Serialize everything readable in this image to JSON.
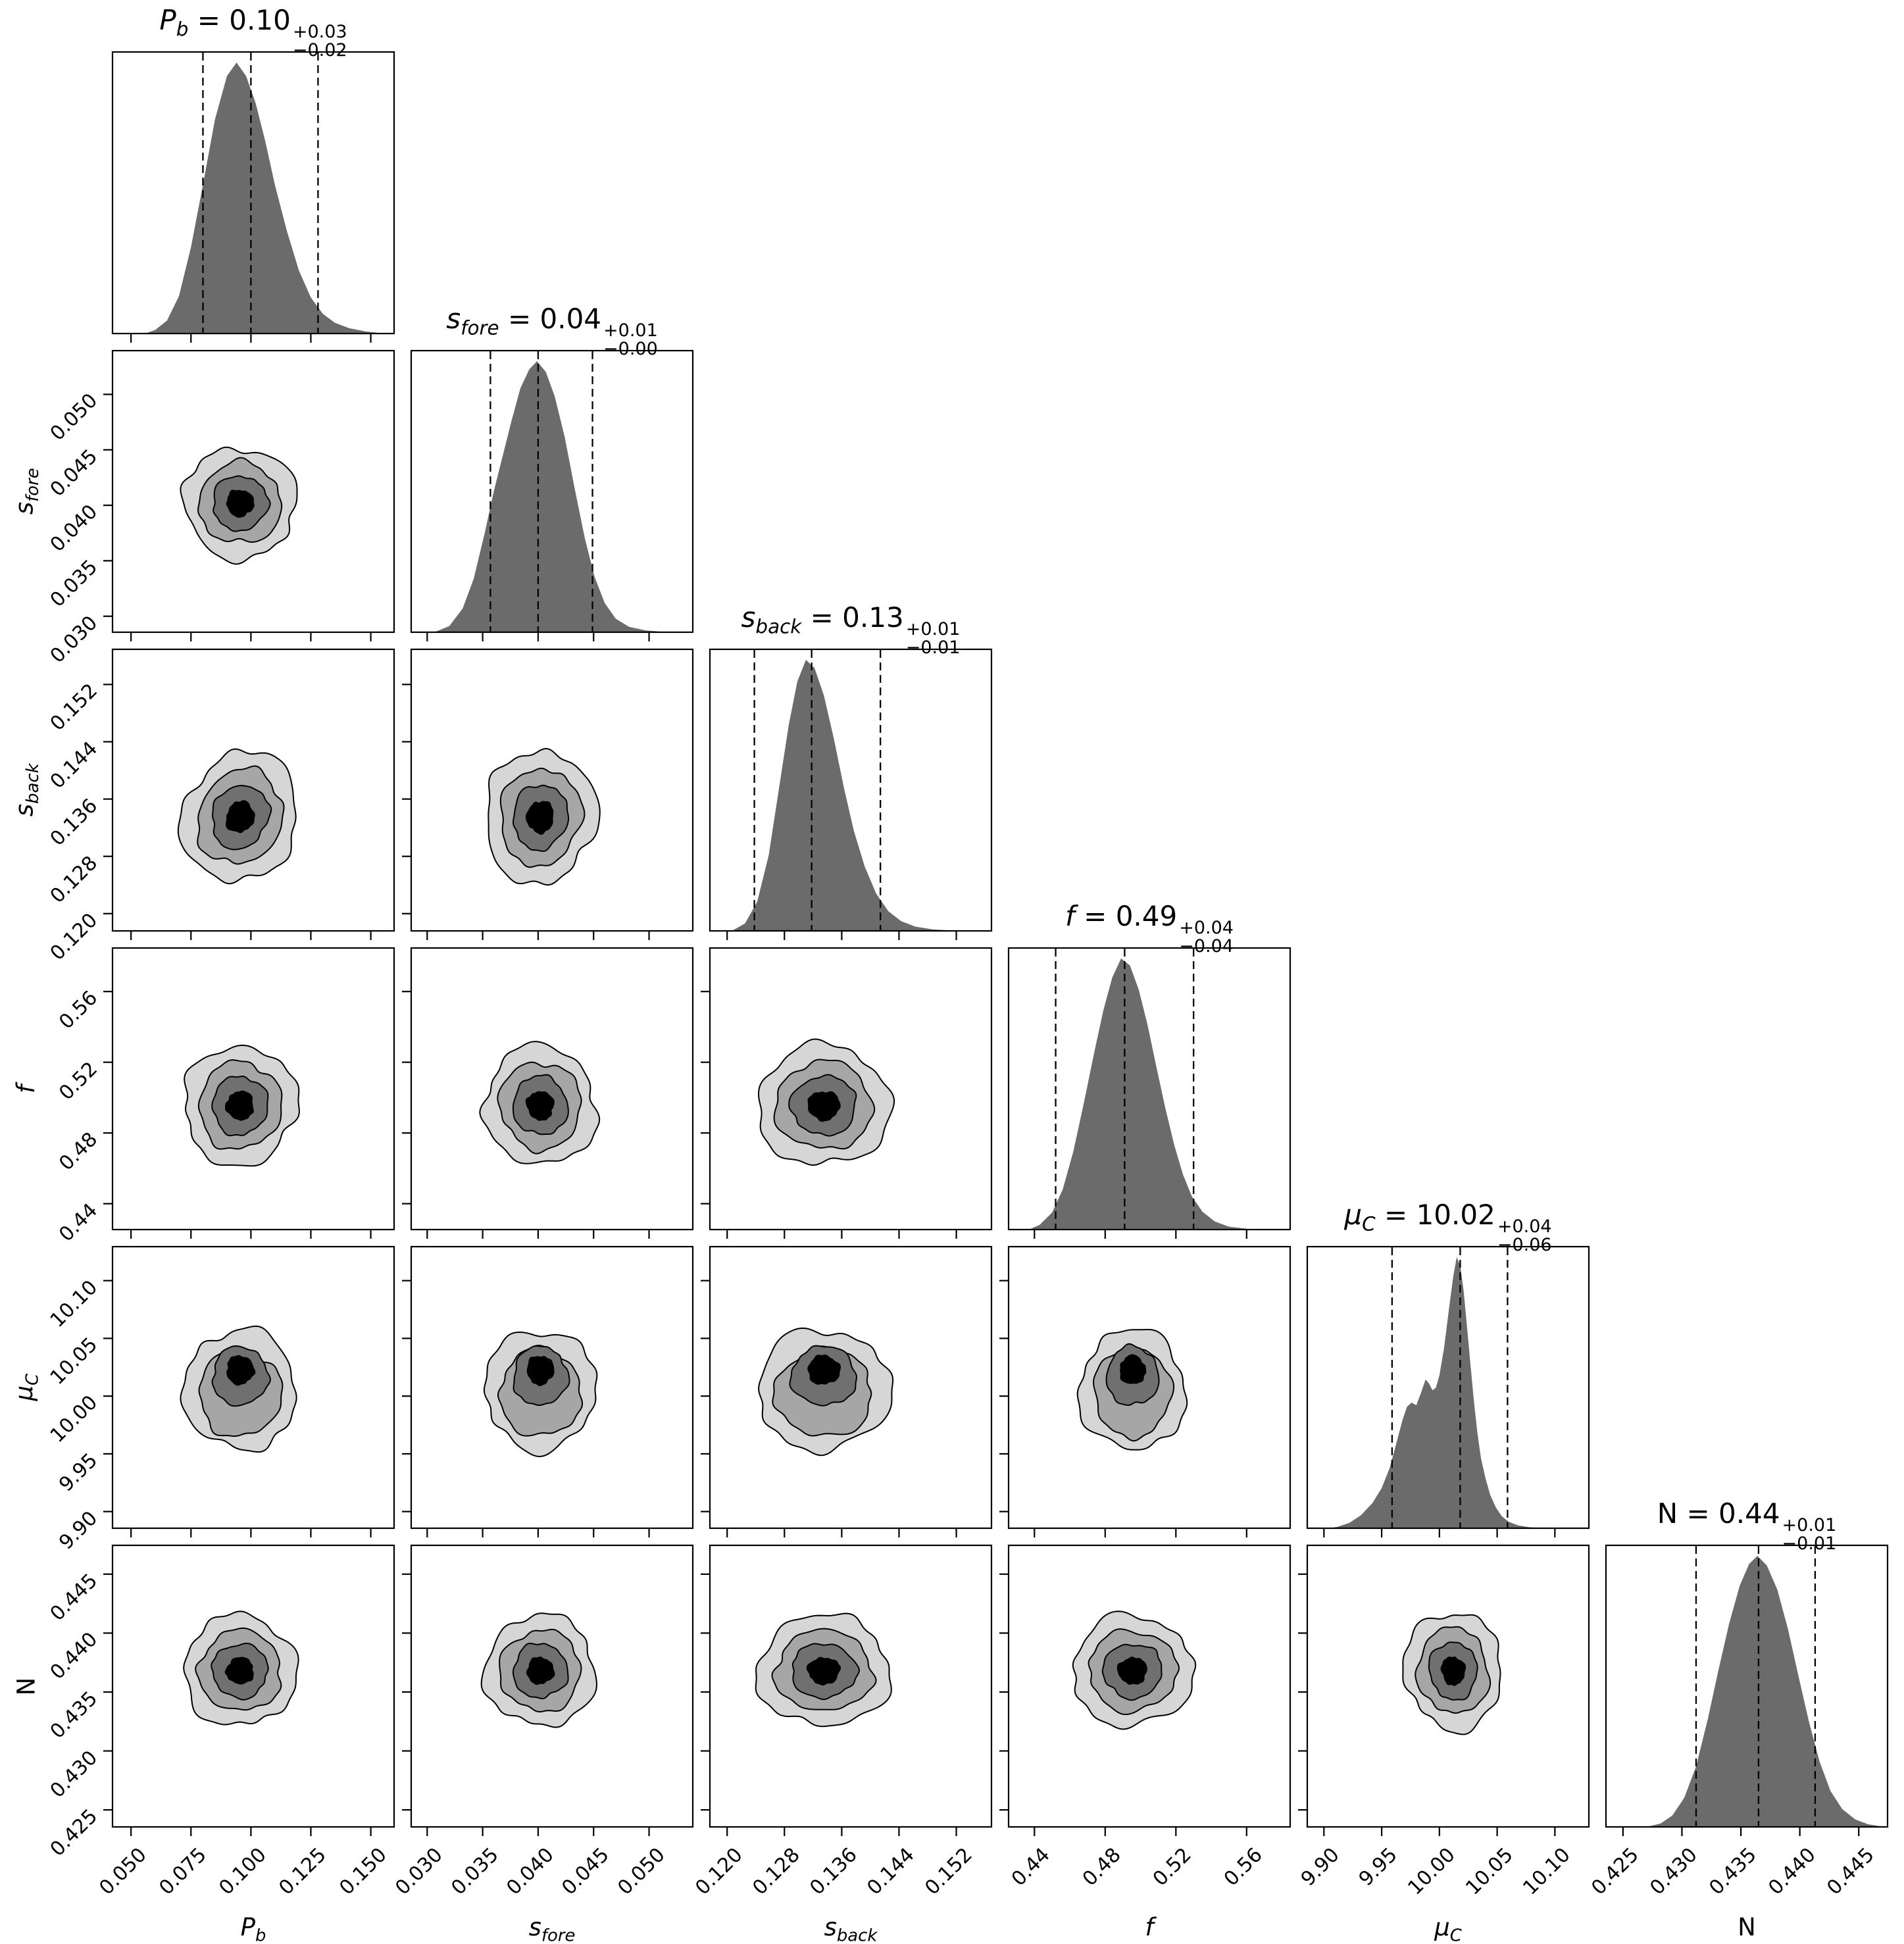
{
  "chart_data": {
    "type": "corner",
    "description": "Corner plot of MCMC posterior samples for 6 parameters. Diagonal panels: 1D marginal histograms with dashed lines at the 16th/50th/84th percentiles and summary titles. Off-diagonal lower-triangle panels: 2D filled contour plots with 4 grayscale levels (light gray outer to black core).",
    "colors": {
      "background": "#ffffff",
      "line": "#000000",
      "histogram_fill": "#6b6b6b",
      "contour_levels": [
        "#d6d6d6",
        "#a6a6a6",
        "#707070",
        "#000000"
      ]
    },
    "parameters": [
      {
        "id": "P_b",
        "symbol": "P",
        "subscript": "b",
        "italic": true,
        "estimate": "0.10",
        "err_plus": "+0.03",
        "err_minus": "−0.02",
        "title_text": "P_b = 0.10 +0.03 −0.02",
        "range": [
          0.042,
          0.16
        ],
        "ticks": [
          0.05,
          0.075,
          0.1,
          0.125,
          0.15
        ],
        "tick_labels": [
          "0.050",
          "0.075",
          "0.100",
          "0.125",
          "0.150"
        ],
        "quantiles": [
          0.08,
          0.1,
          0.128
        ],
        "center": 0.0955,
        "radius": 0.0235,
        "hist": [
          [
            0.042,
            0
          ],
          [
            0.055,
            0
          ],
          [
            0.06,
            0.015
          ],
          [
            0.065,
            0.05
          ],
          [
            0.07,
            0.14
          ],
          [
            0.075,
            0.32
          ],
          [
            0.08,
            0.55
          ],
          [
            0.085,
            0.79
          ],
          [
            0.09,
            0.95
          ],
          [
            0.094,
            1.0
          ],
          [
            0.098,
            0.95
          ],
          [
            0.102,
            0.85
          ],
          [
            0.106,
            0.71
          ],
          [
            0.11,
            0.55
          ],
          [
            0.115,
            0.38
          ],
          [
            0.12,
            0.235
          ],
          [
            0.125,
            0.135
          ],
          [
            0.13,
            0.075
          ],
          [
            0.135,
            0.042
          ],
          [
            0.141,
            0.022
          ],
          [
            0.148,
            0.01
          ],
          [
            0.155,
            0.003
          ],
          [
            0.16,
            0
          ]
        ]
      },
      {
        "id": "s_fore",
        "symbol": "s",
        "subscript": "fore",
        "italic": true,
        "estimate": "0.04",
        "err_plus": "+0.01",
        "err_minus": "−0.00",
        "title_text": "s_fore = 0.04 +0.01 −0.00",
        "range": [
          0.0285,
          0.054
        ],
        "ticks": [
          0.03,
          0.035,
          0.04,
          0.045,
          0.05
        ],
        "tick_labels": [
          "0.030",
          "0.035",
          "0.040",
          "0.045",
          "0.050"
        ],
        "quantiles": [
          0.0357,
          0.04,
          0.0449
        ],
        "center": 0.0402,
        "radius": 0.005,
        "hist": [
          [
            0.0285,
            0
          ],
          [
            0.0305,
            0
          ],
          [
            0.032,
            0.025
          ],
          [
            0.0332,
            0.09
          ],
          [
            0.0342,
            0.2
          ],
          [
            0.0352,
            0.37
          ],
          [
            0.036,
            0.52
          ],
          [
            0.0368,
            0.65
          ],
          [
            0.0376,
            0.78
          ],
          [
            0.0384,
            0.9
          ],
          [
            0.0392,
            0.97
          ],
          [
            0.0399,
            1.0
          ],
          [
            0.0407,
            0.96
          ],
          [
            0.0415,
            0.87
          ],
          [
            0.0424,
            0.72
          ],
          [
            0.0433,
            0.53
          ],
          [
            0.0442,
            0.35
          ],
          [
            0.0451,
            0.205
          ],
          [
            0.046,
            0.11
          ],
          [
            0.047,
            0.052
          ],
          [
            0.0482,
            0.022
          ],
          [
            0.0497,
            0.009
          ],
          [
            0.0515,
            0.003
          ],
          [
            0.054,
            0
          ]
        ]
      },
      {
        "id": "s_back",
        "symbol": "s",
        "subscript": "back",
        "italic": true,
        "estimate": "0.13",
        "err_plus": "+0.01",
        "err_minus": "−0.01",
        "title_text": "s_back = 0.13 +0.01 −0.01",
        "range": [
          0.1175,
          0.157
        ],
        "ticks": [
          0.12,
          0.128,
          0.136,
          0.144,
          0.152
        ],
        "tick_labels": [
          "0.120",
          "0.128",
          "0.136",
          "0.144",
          "0.152"
        ],
        "quantiles": [
          0.1238,
          0.1318,
          0.1414
        ],
        "center": 0.1335,
        "radius": 0.0093,
        "hist": [
          [
            0.1175,
            0
          ],
          [
            0.1205,
            0
          ],
          [
            0.1225,
            0.03
          ],
          [
            0.1242,
            0.11
          ],
          [
            0.1258,
            0.28
          ],
          [
            0.1272,
            0.52
          ],
          [
            0.1286,
            0.76
          ],
          [
            0.1298,
            0.92
          ],
          [
            0.131,
            1.0
          ],
          [
            0.1322,
            0.97
          ],
          [
            0.1335,
            0.87
          ],
          [
            0.1349,
            0.71
          ],
          [
            0.1363,
            0.53
          ],
          [
            0.1377,
            0.37
          ],
          [
            0.1392,
            0.24
          ],
          [
            0.1408,
            0.14
          ],
          [
            0.1425,
            0.075
          ],
          [
            0.1443,
            0.038
          ],
          [
            0.1463,
            0.018
          ],
          [
            0.1487,
            0.008
          ],
          [
            0.152,
            0.003
          ],
          [
            0.157,
            0
          ]
        ]
      },
      {
        "id": "f",
        "symbol": "f",
        "subscript": "",
        "italic": true,
        "estimate": "0.49",
        "err_plus": "+0.04",
        "err_minus": "−0.04",
        "title_text": "f = 0.49 +0.04 −0.04",
        "range": [
          0.425,
          0.585
        ],
        "ticks": [
          0.44,
          0.48,
          0.52,
          0.56
        ],
        "tick_labels": [
          "0.44",
          "0.48",
          "0.52",
          "0.56"
        ],
        "quantiles": [
          0.452,
          0.491,
          0.53
        ],
        "center": 0.4955,
        "radius": 0.034,
        "hist": [
          [
            0.425,
            0
          ],
          [
            0.436,
            0
          ],
          [
            0.443,
            0.02
          ],
          [
            0.45,
            0.065
          ],
          [
            0.456,
            0.15
          ],
          [
            0.462,
            0.29
          ],
          [
            0.468,
            0.47
          ],
          [
            0.474,
            0.66
          ],
          [
            0.479,
            0.81
          ],
          [
            0.484,
            0.93
          ],
          [
            0.489,
            1.0
          ],
          [
            0.494,
            0.975
          ],
          [
            0.499,
            0.885
          ],
          [
            0.504,
            0.755
          ],
          [
            0.509,
            0.6
          ],
          [
            0.514,
            0.45
          ],
          [
            0.519,
            0.315
          ],
          [
            0.524,
            0.205
          ],
          [
            0.529,
            0.125
          ],
          [
            0.535,
            0.068
          ],
          [
            0.542,
            0.032
          ],
          [
            0.55,
            0.013
          ],
          [
            0.562,
            0.004
          ],
          [
            0.585,
            0
          ]
        ]
      },
      {
        "id": "mu_C",
        "symbol": "μ",
        "subscript": "C",
        "italic": true,
        "estimate": "10.02",
        "err_plus": "+0.04",
        "err_minus": "−0.06",
        "title_text": "μ_C = 10.02 +0.04 −0.06",
        "range": [
          9.885,
          10.13
        ],
        "ticks": [
          9.9,
          9.95,
          10.0,
          10.05,
          10.1
        ],
        "tick_labels": [
          "9.90",
          "9.95",
          "10.00",
          "10.05",
          "10.10"
        ],
        "quantiles": [
          9.959,
          10.018,
          10.059
        ],
        "center": 10.012,
        "radius": 0.047,
        "hist": [
          [
            9.885,
            0
          ],
          [
            9.902,
            0
          ],
          [
            9.912,
            0.008
          ],
          [
            9.922,
            0.022
          ],
          [
            9.932,
            0.05
          ],
          [
            9.942,
            0.095
          ],
          [
            9.95,
            0.15
          ],
          [
            9.957,
            0.225
          ],
          [
            9.963,
            0.32
          ],
          [
            9.968,
            0.4
          ],
          [
            9.972,
            0.45
          ],
          [
            9.976,
            0.465
          ],
          [
            9.98,
            0.455
          ],
          [
            9.984,
            0.5
          ],
          [
            9.988,
            0.55
          ],
          [
            9.991,
            0.535
          ],
          [
            9.994,
            0.51
          ],
          [
            9.997,
            0.52
          ],
          [
            10.0,
            0.565
          ],
          [
            10.004,
            0.665
          ],
          [
            10.008,
            0.8
          ],
          [
            10.012,
            0.93
          ],
          [
            10.015,
            1.0
          ],
          [
            10.018,
            0.97
          ],
          [
            10.021,
            0.875
          ],
          [
            10.024,
            0.74
          ],
          [
            10.027,
            0.6
          ],
          [
            10.03,
            0.465
          ],
          [
            10.033,
            0.35
          ],
          [
            10.036,
            0.26
          ],
          [
            10.04,
            0.185
          ],
          [
            10.044,
            0.125
          ],
          [
            10.049,
            0.078
          ],
          [
            10.054,
            0.047
          ],
          [
            10.06,
            0.026
          ],
          [
            10.068,
            0.013
          ],
          [
            10.078,
            0.006
          ],
          [
            10.095,
            0.002
          ],
          [
            10.13,
            0
          ]
        ]
      },
      {
        "id": "N",
        "symbol": "N",
        "subscript": "",
        "italic": false,
        "estimate": "0.44",
        "err_plus": "+0.01",
        "err_minus": "−0.01",
        "title_text": "N = 0.44 +0.01 −0.01",
        "range": [
          0.4235,
          0.4475
        ],
        "ticks": [
          0.425,
          0.43,
          0.435,
          0.44,
          0.445
        ],
        "tick_labels": [
          "0.425",
          "0.430",
          "0.435",
          "0.440",
          "0.445"
        ],
        "quantiles": [
          0.4312,
          0.4365,
          0.4413
        ],
        "center": 0.4368,
        "radius": 0.0047,
        "hist": [
          [
            0.4235,
            0
          ],
          [
            0.4268,
            0
          ],
          [
            0.4282,
            0.015
          ],
          [
            0.4292,
            0.045
          ],
          [
            0.4302,
            0.11
          ],
          [
            0.4312,
            0.225
          ],
          [
            0.4322,
            0.4
          ],
          [
            0.4331,
            0.58
          ],
          [
            0.434,
            0.75
          ],
          [
            0.4349,
            0.89
          ],
          [
            0.4357,
            0.97
          ],
          [
            0.4364,
            1.0
          ],
          [
            0.4372,
            0.965
          ],
          [
            0.4381,
            0.875
          ],
          [
            0.439,
            0.73
          ],
          [
            0.4399,
            0.555
          ],
          [
            0.4408,
            0.385
          ],
          [
            0.4417,
            0.24
          ],
          [
            0.4426,
            0.135
          ],
          [
            0.4436,
            0.068
          ],
          [
            0.4447,
            0.03
          ],
          [
            0.4458,
            0.012
          ],
          [
            0.4475,
            0
          ]
        ]
      }
    ],
    "pair_panels": [
      {
        "x": "P_b",
        "y": "s_fore",
        "angle": 14,
        "seed": 11
      },
      {
        "x": "P_b",
        "y": "s_back",
        "angle": 24,
        "seed": 22
      },
      {
        "x": "s_fore",
        "y": "s_back",
        "angle": 8,
        "seed": 33
      },
      {
        "x": "P_b",
        "y": "f",
        "angle": 10,
        "seed": 44
      },
      {
        "x": "s_fore",
        "y": "f",
        "angle": -13,
        "seed": 55
      },
      {
        "x": "s_back",
        "y": "f",
        "angle": 0,
        "seed": 66
      },
      {
        "x": "P_b",
        "y": "mu_C",
        "angle": 0,
        "seed": 77,
        "cy": 10.008,
        "ry": 0.052,
        "level_dy": [
          0.05,
          0.1,
          -0.18,
          -0.28
        ]
      },
      {
        "x": "s_fore",
        "y": "mu_C",
        "angle": 0,
        "seed": 88,
        "cy": 10.008,
        "ry": 0.052,
        "level_dy": [
          0.05,
          0.1,
          -0.18,
          -0.28
        ]
      },
      {
        "x": "s_back",
        "y": "mu_C",
        "angle": 0,
        "seed": 99,
        "cy": 10.008,
        "ry": 0.052,
        "level_dy": [
          0.05,
          0.1,
          -0.18,
          -0.28
        ]
      },
      {
        "x": "f",
        "y": "mu_C",
        "angle": 0,
        "seed": 110,
        "cy": 10.008,
        "ry": 0.052,
        "rx": 0.03,
        "level_dy": [
          0.05,
          0.1,
          -0.18,
          -0.28
        ]
      },
      {
        "x": "P_b",
        "y": "N",
        "angle": 0,
        "seed": 121
      },
      {
        "x": "s_fore",
        "y": "N",
        "angle": 0,
        "seed": 132
      },
      {
        "x": "s_back",
        "y": "N",
        "angle": 0,
        "seed": 143
      },
      {
        "x": "f",
        "y": "N",
        "angle": 0,
        "seed": 154
      },
      {
        "x": "mu_C",
        "y": "N",
        "angle": -8,
        "seed": 165,
        "rx": 0.042,
        "ry": 0.005
      }
    ]
  }
}
